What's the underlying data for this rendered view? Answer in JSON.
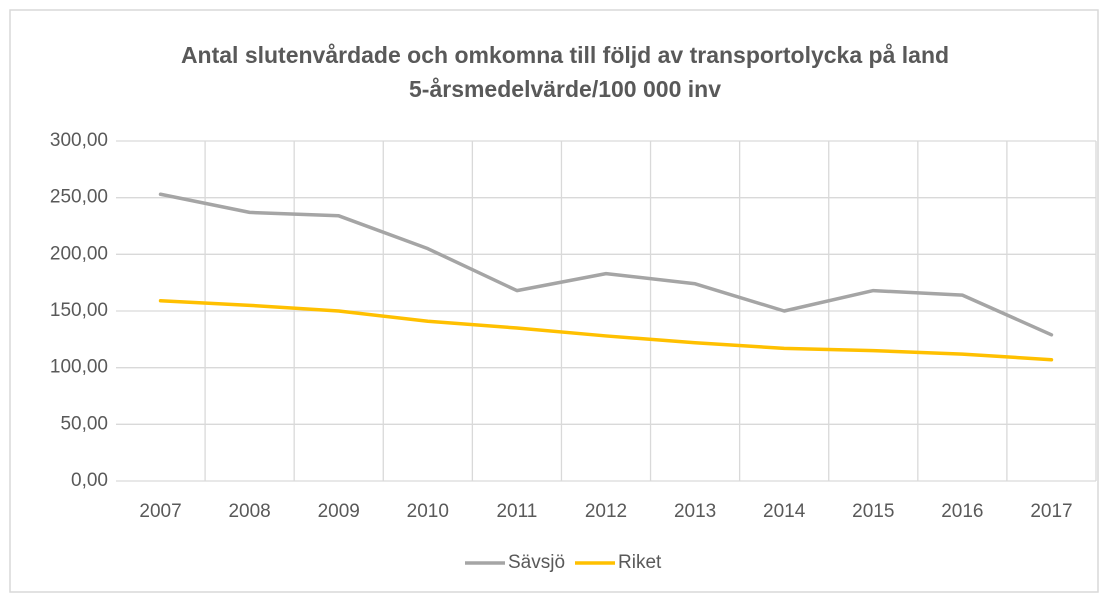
{
  "chart_data": {
    "type": "line",
    "title": "Antal slutenvårdade och omkomna till följd av transportolycka på land",
    "subtitle": "5-årsmedelvärde/100 000 inv",
    "categories": [
      "2007",
      "2008",
      "2009",
      "2010",
      "2011",
      "2012",
      "2013",
      "2014",
      "2015",
      "2016",
      "2017"
    ],
    "series": [
      {
        "name": "Sävsjö",
        "color": "#a5a5a5",
        "values": [
          253,
          237,
          234,
          205,
          168,
          183,
          174,
          150,
          168,
          164,
          129
        ]
      },
      {
        "name": "Riket",
        "color": "#ffc000",
        "values": [
          159,
          155,
          150,
          141,
          135,
          128,
          122,
          117,
          115,
          112,
          107
        ]
      }
    ],
    "ylim": [
      0,
      300
    ],
    "yticks": [
      {
        "value": 0,
        "label": "0,00"
      },
      {
        "value": 50,
        "label": "50,00"
      },
      {
        "value": 100,
        "label": "100,00"
      },
      {
        "value": 150,
        "label": "150,00"
      },
      {
        "value": 200,
        "label": "200,00"
      },
      {
        "value": 250,
        "label": "250,00"
      },
      {
        "value": 300,
        "label": "300,00"
      }
    ],
    "grid": true,
    "legend": "bottom"
  }
}
